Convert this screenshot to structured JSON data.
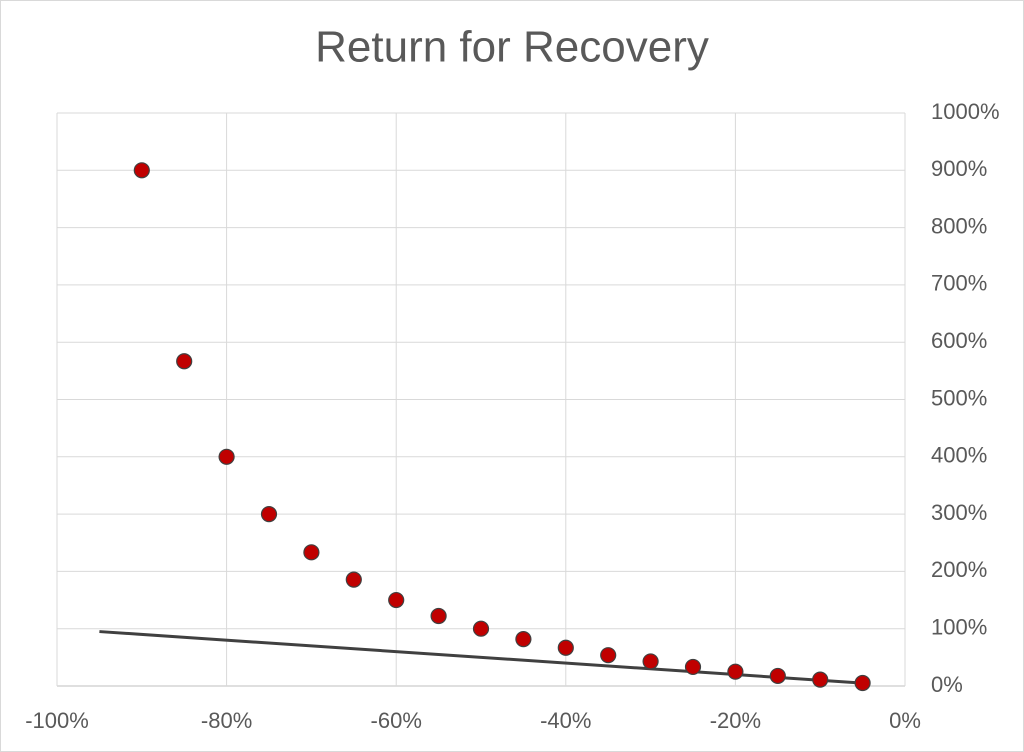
{
  "chart_data": {
    "type": "scatter",
    "title": "Return for Recovery",
    "xlim": [
      -100,
      0
    ],
    "xticks": [
      {
        "value": -100,
        "label": "-100%"
      },
      {
        "value": -80,
        "label": "-80%"
      },
      {
        "value": -60,
        "label": "-60%"
      },
      {
        "value": -40,
        "label": "-40%"
      },
      {
        "value": -20,
        "label": "-20%"
      },
      {
        "value": 0,
        "label": "0%"
      }
    ],
    "ylim": [
      0,
      1000
    ],
    "yticks": [
      {
        "value": 0,
        "label": "0%"
      },
      {
        "value": 100,
        "label": "100%"
      },
      {
        "value": 200,
        "label": "200%"
      },
      {
        "value": 300,
        "label": "300%"
      },
      {
        "value": 400,
        "label": "400%"
      },
      {
        "value": 500,
        "label": "500%"
      },
      {
        "value": 600,
        "label": "600%"
      },
      {
        "value": 700,
        "label": "700%"
      },
      {
        "value": 800,
        "label": "800%"
      },
      {
        "value": 900,
        "label": "900%"
      },
      {
        "value": 1000,
        "label": "1000%"
      }
    ],
    "y_axis_side": "right",
    "grid": true,
    "series": [
      {
        "type": "scatter",
        "color": "#c00000",
        "x": [
          -90,
          -85,
          -80,
          -75,
          -70,
          -65,
          -60,
          -55,
          -50,
          -45,
          -40,
          -35,
          -30,
          -25,
          -20,
          -15,
          -10,
          -5
        ],
        "values": [
          900,
          566.7,
          400,
          300,
          233.3,
          185.7,
          150,
          122.2,
          100,
          81.8,
          66.7,
          53.8,
          42.9,
          33.3,
          25,
          17.6,
          11.1,
          5.3
        ]
      },
      {
        "type": "line",
        "color": "#404040",
        "x": [
          -95,
          -5
        ],
        "values": [
          95,
          5
        ]
      }
    ]
  }
}
